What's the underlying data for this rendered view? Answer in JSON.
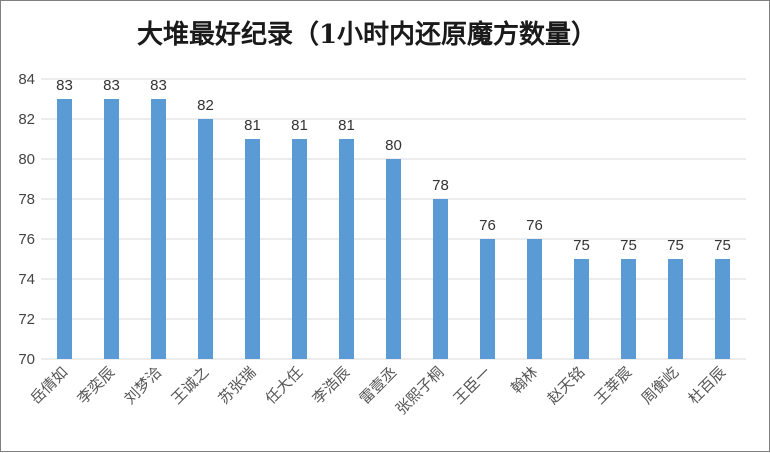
{
  "chart_data": {
    "type": "bar",
    "title": "大堆最好纪录（1小时内还原魔方数量）",
    "xlabel": "",
    "ylabel": "",
    "categories": [
      "岳倩如",
      "李奕辰",
      "刘梦洽",
      "王诚之",
      "苏张瑞",
      "任大任",
      "李浩辰",
      "雷壹丞",
      "张熙子桐",
      "王臣一",
      "翰林",
      "赵天铭",
      "王莘宸",
      "周衡屹",
      "杜百辰"
    ],
    "values": [
      83,
      83,
      83,
      82,
      81,
      81,
      81,
      80,
      78,
      76,
      76,
      75,
      75,
      75,
      75
    ],
    "ylim": [
      70,
      84
    ],
    "yticks": [
      "70",
      "72",
      "74",
      "76",
      "78",
      "80",
      "82",
      "84"
    ],
    "grid": true,
    "legend": "none",
    "bar_color": "#5b9bd5",
    "grid_color": "#d9d9d9"
  }
}
